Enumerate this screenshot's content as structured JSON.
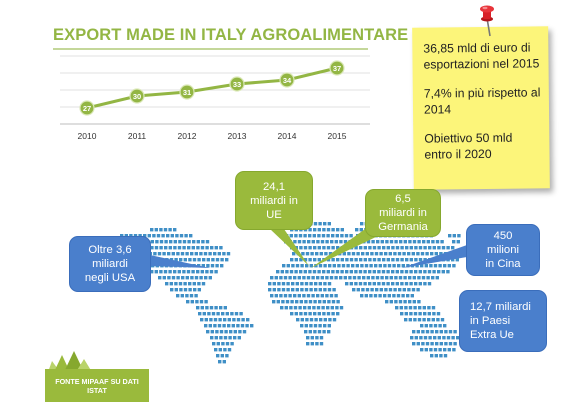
{
  "header": {
    "title": "EXPORT MADE IN ITALY AGROALIMENTARE"
  },
  "chart_data": {
    "type": "line",
    "x": [
      "2010",
      "2011",
      "2012",
      "2013",
      "2014",
      "2015"
    ],
    "series": [
      {
        "values": [
          27,
          30,
          31,
          33,
          34,
          37
        ]
      }
    ],
    "data_labels": [
      "27",
      "30",
      "31",
      "33",
      "34",
      "37"
    ],
    "ylim": [
      23,
      40
    ],
    "grid": true,
    "colors": {
      "line": "#93b644",
      "marker_stroke": "#93b644",
      "label_text": "#ffffff",
      "grid": "#e0e0e0"
    }
  },
  "sticky_note": {
    "line1": "36,85 mld di euro di esportazioni nel 2015",
    "line2": "7,4% in più rispetto al 2014",
    "line3": "Obiettivo 50 mld entro il 2020",
    "color": "#fcf57a",
    "pin_icon": "pushpin-icon"
  },
  "callouts": {
    "ue": {
      "line1": "24,1",
      "line2": "miliardi in",
      "line3": "UE"
    },
    "germania": {
      "line1": "6,5",
      "line2": "miliardi in",
      "line3": "Germania"
    },
    "usa": {
      "line1": "Oltre 3,6",
      "line2": "miliardi",
      "line3": "negli USA"
    },
    "cina": {
      "line1": "450",
      "line2": "milioni",
      "line3": "in Cina"
    },
    "extra_ue": {
      "line1": "12,7 miliardi",
      "line2": "in Paesi",
      "line3": "Extra Ue"
    }
  },
  "colors": {
    "green": "#9aba3c",
    "blue": "#4a7fcc",
    "map_dots": "#3f8fc6"
  },
  "source": {
    "line1": "FONTE MIPAAF SU DATI",
    "line2": "ISTAT"
  }
}
